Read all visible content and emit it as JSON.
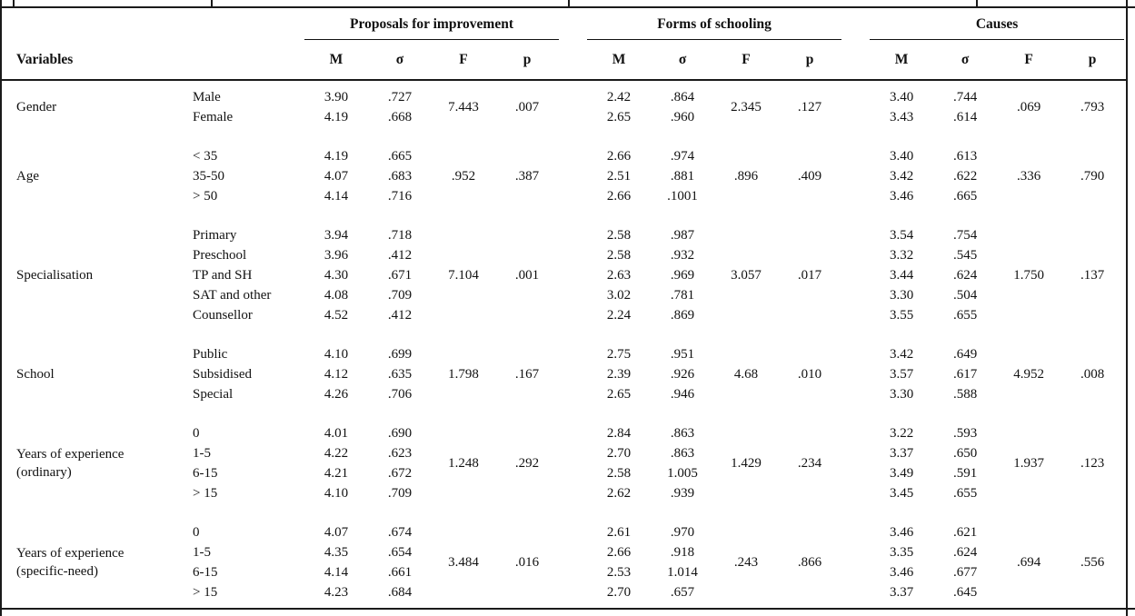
{
  "page": {
    "background": "#ffffff",
    "text_color": "#111111",
    "rule_color": "#1a1a1a"
  },
  "table": {
    "corner_label": "Variables",
    "group_headers": [
      "Proposals for improvement",
      "Forms of schooling",
      "Causes"
    ],
    "stat_col_headers": [
      "M",
      "σ",
      "F",
      "p"
    ],
    "sections": [
      {
        "id": "gender",
        "variable": "Gender",
        "variable_line2": "",
        "rows": [
          {
            "category": "Male",
            "m_sigma": [
              [
                "3.90",
                ".727"
              ],
              [
                "2.42",
                ".864"
              ],
              [
                "3.40",
                ".744"
              ]
            ]
          },
          {
            "category": "Female",
            "m_sigma": [
              [
                "4.19",
                ".668"
              ],
              [
                "2.65",
                ".960"
              ],
              [
                "3.43",
                ".614"
              ]
            ]
          }
        ],
        "tests": [
          [
            "7.443",
            ".007"
          ],
          [
            "2.345",
            ".127"
          ],
          [
            ".069",
            ".793"
          ]
        ]
      },
      {
        "id": "age",
        "variable": "Age",
        "variable_line2": "",
        "rows": [
          {
            "category": "< 35",
            "m_sigma": [
              [
                "4.19",
                ".665"
              ],
              [
                "2.66",
                ".974"
              ],
              [
                "3.40",
                ".613"
              ]
            ]
          },
          {
            "category": "35-50",
            "m_sigma": [
              [
                "4.07",
                ".683"
              ],
              [
                "2.51",
                ".881"
              ],
              [
                "3.42",
                ".622"
              ]
            ]
          },
          {
            "category": "> 50",
            "m_sigma": [
              [
                "4.14",
                ".716"
              ],
              [
                "2.66",
                ".1001"
              ],
              [
                "3.46",
                ".665"
              ]
            ]
          }
        ],
        "tests": [
          [
            ".952",
            ".387"
          ],
          [
            ".896",
            ".409"
          ],
          [
            ".336",
            ".790"
          ]
        ]
      },
      {
        "id": "specialisation",
        "variable": "Specialisation",
        "variable_line2": "",
        "rows": [
          {
            "category": "Primary",
            "m_sigma": [
              [
                "3.94",
                ".718"
              ],
              [
                "2.58",
                ".987"
              ],
              [
                "3.54",
                ".754"
              ]
            ]
          },
          {
            "category": "Preschool",
            "m_sigma": [
              [
                "3.96",
                ".412"
              ],
              [
                "2.58",
                ".932"
              ],
              [
                "3.32",
                ".545"
              ]
            ]
          },
          {
            "category": "TP and SH",
            "m_sigma": [
              [
                "4.30",
                ".671"
              ],
              [
                "2.63",
                ".969"
              ],
              [
                "3.44",
                ".624"
              ]
            ]
          },
          {
            "category": "SAT and other",
            "m_sigma": [
              [
                "4.08",
                ".709"
              ],
              [
                "3.02",
                ".781"
              ],
              [
                "3.30",
                ".504"
              ]
            ]
          },
          {
            "category": "Counsellor",
            "m_sigma": [
              [
                "4.52",
                ".412"
              ],
              [
                "2.24",
                ".869"
              ],
              [
                "3.55",
                ".655"
              ]
            ]
          }
        ],
        "tests": [
          [
            "7.104",
            ".001"
          ],
          [
            "3.057",
            ".017"
          ],
          [
            "1.750",
            ".137"
          ]
        ]
      },
      {
        "id": "school",
        "variable": "School",
        "variable_line2": "",
        "rows": [
          {
            "category": "Public",
            "m_sigma": [
              [
                "4.10",
                ".699"
              ],
              [
                "2.75",
                ".951"
              ],
              [
                "3.42",
                ".649"
              ]
            ]
          },
          {
            "category": "Subsidised",
            "m_sigma": [
              [
                "4.12",
                ".635"
              ],
              [
                "2.39",
                ".926"
              ],
              [
                "3.57",
                ".617"
              ]
            ]
          },
          {
            "category": "Special",
            "m_sigma": [
              [
                "4.26",
                ".706"
              ],
              [
                "2.65",
                ".946"
              ],
              [
                "3.30",
                ".588"
              ]
            ]
          }
        ],
        "tests": [
          [
            "1.798",
            ".167"
          ],
          [
            "4.68",
            ".010"
          ],
          [
            "4.952",
            ".008"
          ]
        ]
      },
      {
        "id": "years-ordinary",
        "variable": "Years of experience",
        "variable_line2": "(ordinary)",
        "rows": [
          {
            "category": "0",
            "m_sigma": [
              [
                "4.01",
                ".690"
              ],
              [
                "2.84",
                ".863"
              ],
              [
                "3.22",
                ".593"
              ]
            ]
          },
          {
            "category": "1-5",
            "m_sigma": [
              [
                "4.22",
                ".623"
              ],
              [
                "2.70",
                ".863"
              ],
              [
                "3.37",
                ".650"
              ]
            ]
          },
          {
            "category": "6-15",
            "m_sigma": [
              [
                "4.21",
                ".672"
              ],
              [
                "2.58",
                "1.005"
              ],
              [
                "3.49",
                ".591"
              ]
            ]
          },
          {
            "category": "> 15",
            "m_sigma": [
              [
                "4.10",
                ".709"
              ],
              [
                "2.62",
                ".939"
              ],
              [
                "3.45",
                ".655"
              ]
            ]
          }
        ],
        "tests": [
          [
            "1.248",
            ".292"
          ],
          [
            "1.429",
            ".234"
          ],
          [
            "1.937",
            ".123"
          ]
        ]
      },
      {
        "id": "years-specific-need",
        "variable": "Years of experience",
        "variable_line2": "(specific-need)",
        "rows": [
          {
            "category": "0",
            "m_sigma": [
              [
                "4.07",
                ".674"
              ],
              [
                "2.61",
                ".970"
              ],
              [
                "3.46",
                ".621"
              ]
            ]
          },
          {
            "category": "1-5",
            "m_sigma": [
              [
                "4.35",
                ".654"
              ],
              [
                "2.66",
                ".918"
              ],
              [
                "3.35",
                ".624"
              ]
            ]
          },
          {
            "category": "6-15",
            "m_sigma": [
              [
                "4.14",
                ".661"
              ],
              [
                "2.53",
                "1.014"
              ],
              [
                "3.46",
                ".677"
              ]
            ]
          },
          {
            "category": "> 15",
            "m_sigma": [
              [
                "4.23",
                ".684"
              ],
              [
                "2.70",
                ".657"
              ],
              [
                "3.37",
                ".645"
              ]
            ]
          }
        ],
        "tests": [
          [
            "3.484",
            ".016"
          ],
          [
            ".243",
            ".866"
          ],
          [
            ".694",
            ".556"
          ]
        ]
      }
    ]
  }
}
